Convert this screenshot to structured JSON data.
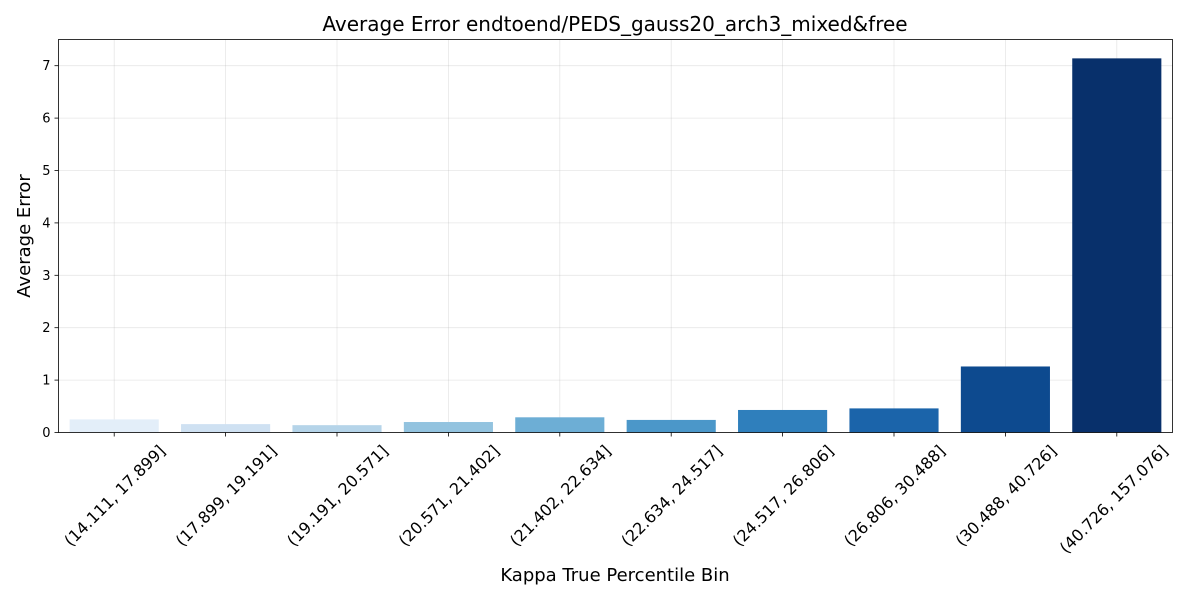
{
  "chart_data": {
    "type": "bar",
    "title": "Average Error endtoend/PEDS_gauss20_arch3_mixed&free",
    "xlabel": "Kappa True Percentile Bin",
    "ylabel": "Average Error",
    "categories": [
      "(14.111, 17.899]",
      "(17.899, 19.191]",
      "(19.191, 20.571]",
      "(20.571, 21.402]",
      "(21.402, 22.634]",
      "(22.634, 24.517]",
      "(24.517, 26.806]",
      "(26.806, 30.488]",
      "(30.488, 40.726]",
      "(40.726, 157.076]"
    ],
    "values": [
      0.25,
      0.16,
      0.14,
      0.2,
      0.29,
      0.24,
      0.43,
      0.46,
      1.26,
      7.14
    ],
    "colors": [
      "#e3eef9",
      "#cfe1f2",
      "#b5d4e9",
      "#93c3df",
      "#6daed5",
      "#4b97c9",
      "#2f7fbc",
      "#1b64aa",
      "#0d4a8f",
      "#08306b"
    ],
    "ylim": [
      0,
      7.5
    ],
    "yticks": [
      0,
      1,
      2,
      3,
      4,
      5,
      6,
      7
    ],
    "grid": true
  }
}
